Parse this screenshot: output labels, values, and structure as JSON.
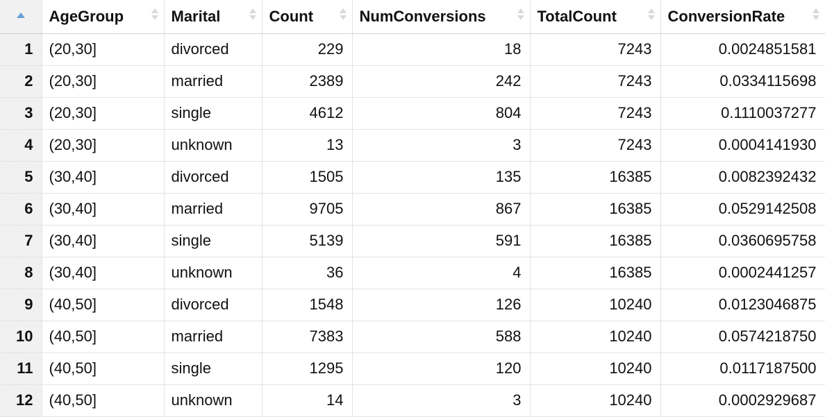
{
  "table": {
    "headers": [
      {
        "label": "",
        "sorted": "asc"
      },
      {
        "label": "AgeGroup"
      },
      {
        "label": "Marital"
      },
      {
        "label": "Count"
      },
      {
        "label": "NumConversions"
      },
      {
        "label": "TotalCount"
      },
      {
        "label": "ConversionRate"
      }
    ],
    "rows": [
      [
        "1",
        "(20,30]",
        "divorced",
        "229",
        "18",
        "7243",
        "0.0024851581"
      ],
      [
        "2",
        "(20,30]",
        "married",
        "2389",
        "242",
        "7243",
        "0.0334115698"
      ],
      [
        "3",
        "(20,30]",
        "single",
        "4612",
        "804",
        "7243",
        "0.1110037277"
      ],
      [
        "4",
        "(20,30]",
        "unknown",
        "13",
        "3",
        "7243",
        "0.0004141930"
      ],
      [
        "5",
        "(30,40]",
        "divorced",
        "1505",
        "135",
        "16385",
        "0.0082392432"
      ],
      [
        "6",
        "(30,40]",
        "married",
        "9705",
        "867",
        "16385",
        "0.0529142508"
      ],
      [
        "7",
        "(30,40]",
        "single",
        "5139",
        "591",
        "16385",
        "0.0360695758"
      ],
      [
        "8",
        "(30,40]",
        "unknown",
        "36",
        "4",
        "16385",
        "0.0002441257"
      ],
      [
        "9",
        "(40,50]",
        "divorced",
        "1548",
        "126",
        "10240",
        "0.0123046875"
      ],
      [
        "10",
        "(40,50]",
        "married",
        "7383",
        "588",
        "10240",
        "0.0574218750"
      ],
      [
        "11",
        "(40,50]",
        "single",
        "1295",
        "120",
        "10240",
        "0.0117187500"
      ],
      [
        "12",
        "(40,50]",
        "unknown",
        "14",
        "3",
        "10240",
        "0.0002929687"
      ]
    ]
  },
  "colors": {
    "sort_active": "#6aa2d8",
    "sort_inactive": "#d9d9d9",
    "grid": "#e3e3e3",
    "index_bg": "#f4f4f4"
  }
}
